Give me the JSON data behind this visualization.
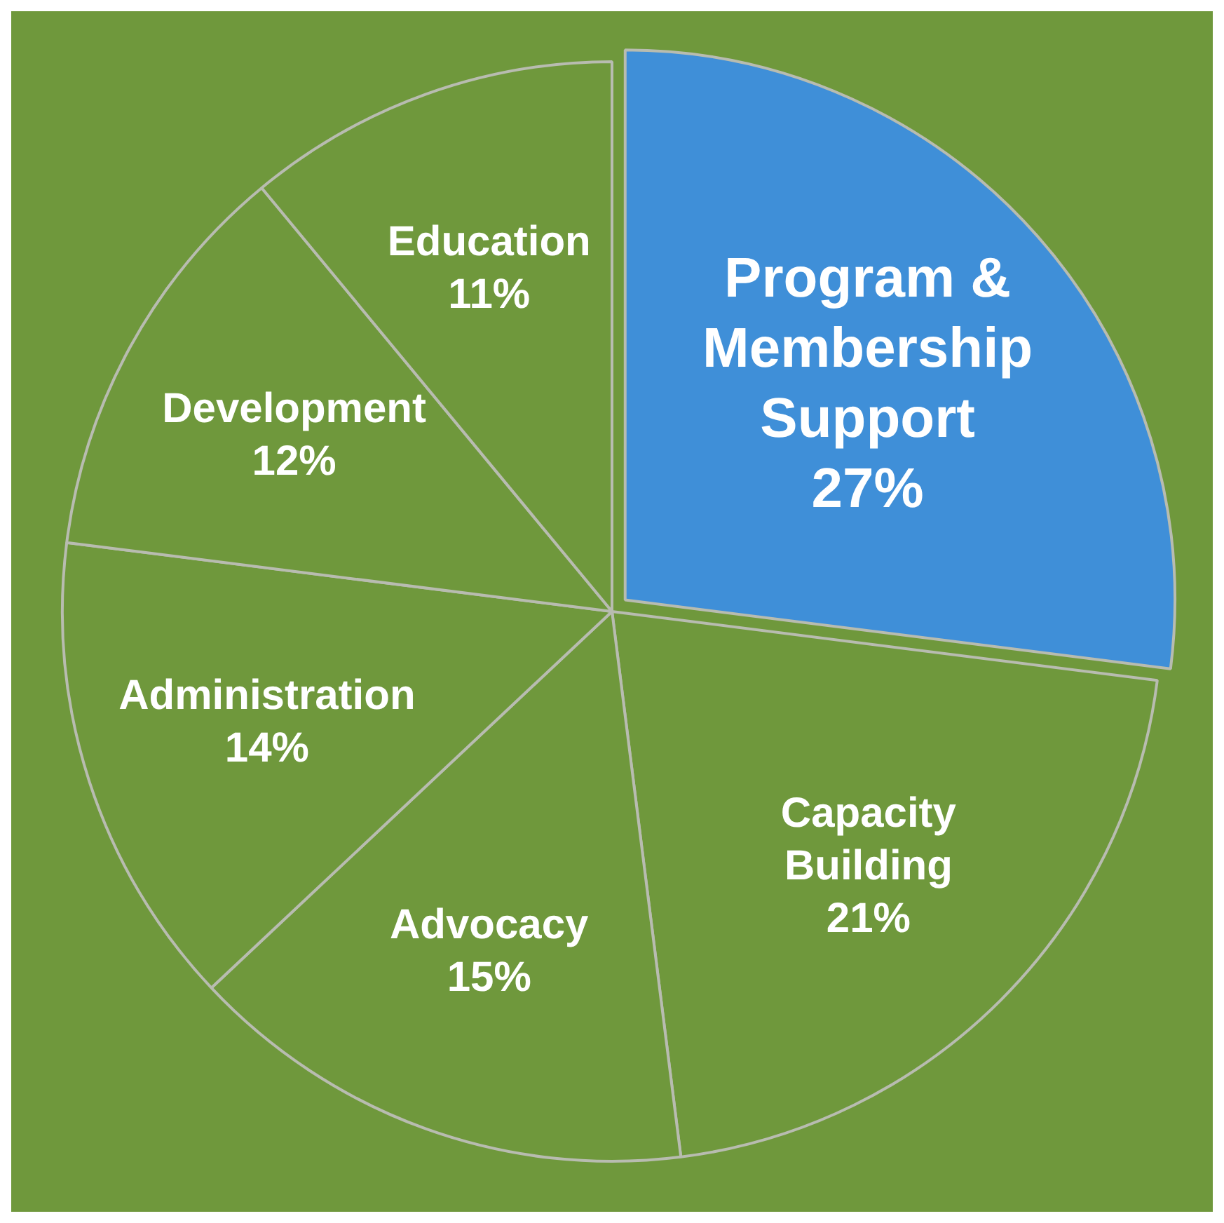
{
  "chart_data": {
    "type": "pie",
    "categories": [
      "Program & Membership Support",
      "Capacity Building",
      "Advocacy",
      "Administration",
      "Development",
      "Education"
    ],
    "values": [
      27,
      21,
      15,
      14,
      12,
      11
    ],
    "colors": [
      "#3f8fd8",
      "#6f983c",
      "#6f983c",
      "#6f983c",
      "#6f983c",
      "#6f983c"
    ],
    "value_labels": [
      "27%",
      "21%",
      "15%",
      "14%",
      "12%",
      "11%"
    ],
    "legend": false
  }
}
